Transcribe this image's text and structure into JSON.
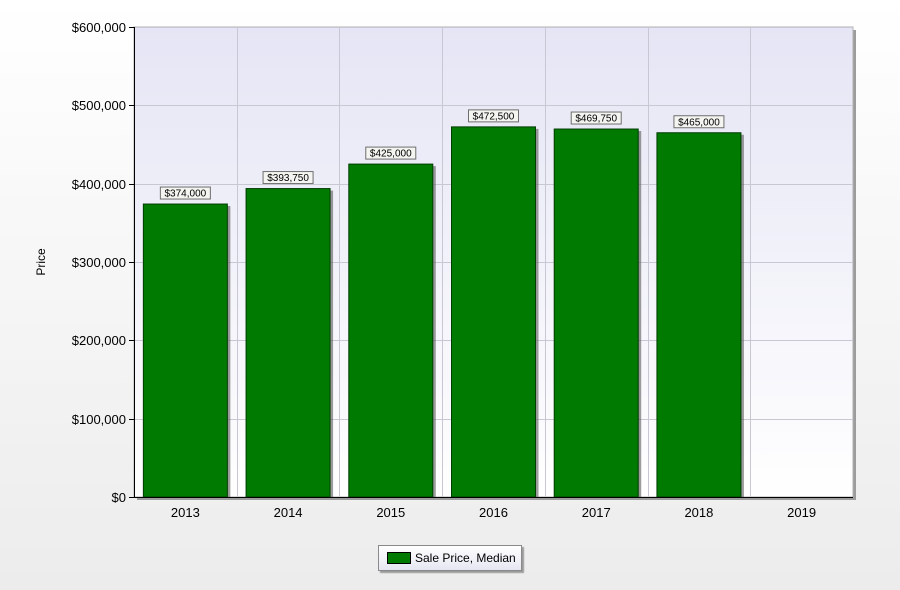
{
  "chart_data": {
    "type": "bar",
    "categories": [
      "2013",
      "2014",
      "2015",
      "2016",
      "2017",
      "2018",
      "2019"
    ],
    "series": [
      {
        "name": "Sale Price, Median",
        "values": [
          374000,
          393750,
          425000,
          472500,
          469750,
          465000,
          null
        ],
        "labels": [
          "$374,000",
          "$393,750",
          "$425,000",
          "$472,500",
          "$469,750",
          "$465,000",
          null
        ]
      }
    ],
    "title": "",
    "xlabel": "",
    "ylabel": "Price",
    "ylim": [
      0,
      600000
    ],
    "yticks": [
      0,
      100000,
      200000,
      300000,
      400000,
      500000,
      600000
    ],
    "ytick_labels": [
      "$0",
      "$100,000",
      "$200,000",
      "$300,000",
      "$400,000",
      "$500,000",
      "$600,000"
    ],
    "grid": true,
    "legend_position": "bottom-center"
  },
  "colors": {
    "bar": "#007a00",
    "plot_top": "#e5e5f5",
    "plot_bottom": "#ffffff",
    "grid": "#c8c8d4"
  }
}
